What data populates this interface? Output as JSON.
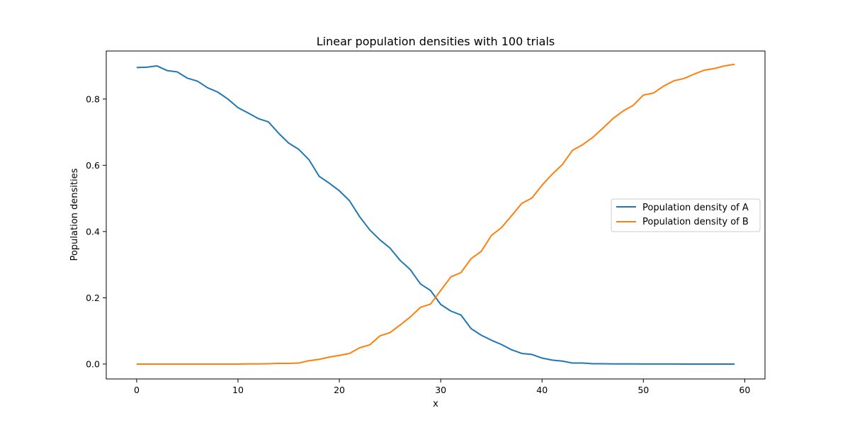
{
  "chart_data": {
    "type": "line",
    "title": "Linear population densities with 100 trials",
    "xlabel": "x",
    "ylabel": "Population densities",
    "xlim": [
      -3,
      62
    ],
    "ylim": [
      -0.045,
      0.945
    ],
    "xticks": [
      0,
      10,
      20,
      30,
      40,
      50,
      60
    ],
    "xtick_labels": [
      "0",
      "10",
      "20",
      "30",
      "40",
      "50",
      "60"
    ],
    "yticks": [
      0.0,
      0.2,
      0.4,
      0.6,
      0.8
    ],
    "ytick_labels": [
      "0.0",
      "0.2",
      "0.4",
      "0.6",
      "0.8"
    ],
    "grid": false,
    "legend_position": "center-right",
    "x": [
      0,
      1,
      2,
      3,
      4,
      5,
      6,
      7,
      8,
      9,
      10,
      11,
      12,
      13,
      14,
      15,
      16,
      17,
      18,
      19,
      20,
      21,
      22,
      23,
      24,
      25,
      26,
      27,
      28,
      29,
      30,
      31,
      32,
      33,
      34,
      35,
      36,
      37,
      38,
      39,
      40,
      41,
      42,
      43,
      44,
      45,
      46,
      47,
      48,
      49,
      50,
      51,
      52,
      53,
      54,
      55,
      56,
      57,
      58,
      59
    ],
    "series": [
      {
        "name": "Population density of A",
        "color": "#1f77b4",
        "values": [
          0.895,
          0.896,
          0.9,
          0.886,
          0.882,
          0.863,
          0.854,
          0.834,
          0.821,
          0.8,
          0.774,
          0.758,
          0.741,
          0.731,
          0.697,
          0.667,
          0.648,
          0.617,
          0.567,
          0.546,
          0.523,
          0.493,
          0.445,
          0.405,
          0.375,
          0.35,
          0.313,
          0.285,
          0.242,
          0.222,
          0.18,
          0.16,
          0.148,
          0.107,
          0.087,
          0.072,
          0.059,
          0.043,
          0.032,
          0.029,
          0.018,
          0.012,
          0.009,
          0.003,
          0.003,
          0.001,
          0.001,
          0.0005,
          0.0005,
          0.0003,
          0.0002,
          0.0001,
          0.0001,
          0.0001,
          0.0,
          0.0,
          0.0,
          0.0,
          0.0,
          0.0
        ]
      },
      {
        "name": "Population density of B",
        "color": "#ff7f0e",
        "values": [
          0.0,
          0.0,
          0.0,
          0.0,
          0.0,
          0.0,
          0.0,
          0.0,
          0.0,
          0.0,
          0.0,
          0.0003,
          0.0003,
          0.001,
          0.002,
          0.002,
          0.003,
          0.01,
          0.014,
          0.021,
          0.026,
          0.032,
          0.049,
          0.058,
          0.085,
          0.095,
          0.118,
          0.142,
          0.171,
          0.181,
          0.222,
          0.263,
          0.276,
          0.318,
          0.34,
          0.388,
          0.412,
          0.448,
          0.485,
          0.501,
          0.54,
          0.573,
          0.602,
          0.645,
          0.662,
          0.684,
          0.712,
          0.741,
          0.764,
          0.781,
          0.812,
          0.818,
          0.839,
          0.855,
          0.862,
          0.875,
          0.887,
          0.892,
          0.9,
          0.905
        ]
      }
    ]
  }
}
